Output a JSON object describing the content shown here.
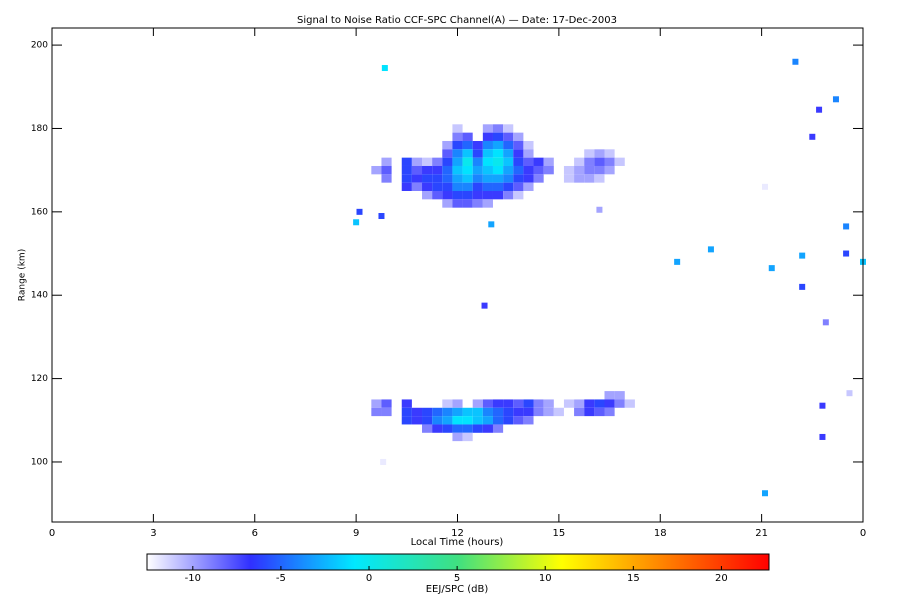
{
  "chart_data": {
    "type": "heatmap",
    "title": "Signal to Noise Ratio CCF-SPC Channel(A) — Date: 17-Dec-2003",
    "x_label": "Local Time (hours)",
    "y_label": "Range (km)",
    "xlim": [
      0,
      24
    ],
    "xticks": [
      0,
      3,
      6,
      9,
      12,
      15,
      18,
      21,
      {
        "value": 24,
        "label": "0"
      }
    ],
    "ylim": [
      85.6,
      204.1
    ],
    "yticks": [
      100,
      120,
      140,
      160,
      180,
      200
    ],
    "x": [
      9.6,
      9.9,
      10.2,
      10.5,
      10.8,
      11.1,
      11.4,
      11.7,
      12.0,
      12.3,
      12.6,
      12.9,
      13.2,
      13.5,
      13.8,
      14.1,
      14.4,
      14.7,
      15.0,
      15.3,
      15.6,
      15.9,
      16.2,
      16.5,
      16.8,
      17.1
    ],
    "y": [
      180,
      178,
      176,
      174,
      172,
      170,
      168,
      166,
      164,
      162,
      116,
      114,
      112,
      110,
      108,
      106
    ],
    "z": [
      [
        null,
        null,
        null,
        null,
        null,
        null,
        null,
        null,
        -11,
        null,
        null,
        -10,
        -9,
        -11,
        null,
        null,
        null,
        null,
        null,
        null,
        null,
        null,
        null,
        null,
        null,
        null
      ],
      [
        null,
        null,
        null,
        null,
        null,
        null,
        null,
        null,
        -9,
        -8,
        null,
        -7,
        -6,
        -8,
        -10,
        null,
        null,
        null,
        null,
        null,
        null,
        null,
        null,
        null,
        null,
        null
      ],
      [
        null,
        null,
        null,
        null,
        null,
        null,
        null,
        -10,
        -6,
        -5,
        -7,
        -4,
        -3,
        -5,
        -8,
        -11,
        null,
        null,
        null,
        null,
        null,
        null,
        null,
        null,
        null,
        null
      ],
      [
        null,
        null,
        null,
        null,
        null,
        null,
        null,
        -8,
        -4,
        -2,
        -6,
        -2,
        -1,
        -3,
        -7,
        -10,
        null,
        null,
        null,
        null,
        null,
        -11,
        -10,
        -11,
        null,
        null
      ],
      [
        null,
        -10,
        null,
        -6,
        -10,
        -11,
        -9,
        -6,
        -3,
        0,
        -4,
        -1,
        0,
        -2,
        -6,
        -8,
        -7,
        -10,
        null,
        null,
        -11,
        -9,
        -8,
        -9,
        -11,
        null
      ],
      [
        -10,
        -8,
        null,
        -6,
        -8,
        -7,
        -7,
        -5,
        -2,
        -1,
        -3,
        -2,
        -1,
        -3,
        -5,
        -7,
        -8,
        -9,
        null,
        -11,
        -10,
        -9,
        -9,
        -10,
        null,
        null
      ],
      [
        null,
        -9,
        null,
        -6,
        -7,
        -6,
        -6,
        -5,
        -3,
        -2,
        -4,
        -3,
        -3,
        -4,
        -6,
        -7,
        -9,
        null,
        null,
        -11,
        -10,
        -10,
        -11,
        null,
        null,
        null
      ],
      [
        null,
        null,
        null,
        -7,
        -9,
        -7,
        -6,
        -6,
        -4,
        -4,
        -6,
        -5,
        -5,
        -6,
        -8,
        -10,
        null,
        null,
        null,
        null,
        null,
        null,
        null,
        null,
        null,
        null
      ],
      [
        null,
        null,
        null,
        null,
        null,
        -10,
        -8,
        -7,
        -6,
        -6,
        -7,
        -7,
        -7,
        -9,
        -11,
        null,
        null,
        null,
        null,
        null,
        null,
        null,
        null,
        null,
        null,
        null
      ],
      [
        null,
        null,
        null,
        null,
        null,
        null,
        null,
        -10,
        -8,
        -8,
        -9,
        -10,
        null,
        null,
        null,
        null,
        null,
        null,
        null,
        null,
        null,
        null,
        null,
        null,
        null,
        null
      ],
      [
        null,
        null,
        null,
        null,
        null,
        null,
        null,
        null,
        null,
        null,
        null,
        null,
        null,
        null,
        null,
        null,
        null,
        null,
        null,
        null,
        null,
        null,
        null,
        -10,
        -10,
        null
      ],
      [
        -10,
        -8,
        null,
        -7,
        null,
        null,
        null,
        -11,
        -10,
        null,
        -10,
        -8,
        -7,
        -7,
        -8,
        -6,
        -9,
        -10,
        null,
        -11,
        -10,
        -7,
        -6,
        -7,
        -9,
        -11
      ],
      [
        -9,
        -9,
        null,
        -6,
        -7,
        -6,
        -5,
        -4,
        -3,
        -2,
        -2,
        -4,
        -5,
        -6,
        -7,
        -7,
        -9,
        -10,
        -11,
        null,
        -9,
        -7,
        -8,
        -9,
        null,
        null
      ],
      [
        null,
        null,
        null,
        -6,
        -7,
        -6,
        -4,
        -3,
        -1,
        -1,
        -2,
        -3,
        -5,
        -6,
        -8,
        -9,
        null,
        null,
        null,
        null,
        null,
        null,
        null,
        null,
        null,
        null
      ],
      [
        null,
        null,
        null,
        null,
        null,
        -9,
        -7,
        -6,
        -5,
        -5,
        -6,
        -7,
        -9,
        null,
        null,
        null,
        null,
        null,
        null,
        null,
        null,
        null,
        null,
        null,
        null,
        null
      ],
      [
        null,
        null,
        null,
        null,
        null,
        null,
        null,
        null,
        -10,
        -11,
        null,
        null,
        null,
        null,
        null,
        null,
        null,
        null,
        null,
        null,
        null,
        null,
        null,
        null,
        null,
        null
      ]
    ],
    "points": {
      "x": [
        9.85,
        9.0,
        9.1,
        9.75,
        13.0,
        12.8,
        9.8,
        18.5,
        19.5,
        21.1,
        21.3,
        22.0,
        22.2,
        22.2,
        22.5,
        22.7,
        22.8,
        22.9,
        22.8,
        23.2,
        23.5,
        23.5,
        24.0,
        23.6,
        21.1,
        16.2
      ],
      "y": [
        194.5,
        157.5,
        160,
        159,
        157,
        137.5,
        100,
        148,
        151,
        92.5,
        146.5,
        196,
        149.5,
        142,
        178,
        184.5,
        106,
        133.5,
        113.5,
        187,
        156.5,
        150,
        148,
        116.5,
        166,
        160.5
      ],
      "values": [
        -1,
        -2,
        -6,
        -6,
        -3,
        -7,
        -12,
        -3,
        -3,
        -3,
        -3,
        -4,
        -3,
        -6,
        -7,
        -7,
        -7,
        -9,
        -7,
        -4,
        -4,
        -6,
        -2,
        -11,
        -12,
        -10
      ]
    },
    "colorbar_label": "EEJ/SPC (dB)",
    "clim": [
      -12.6,
      22.7
    ],
    "cticks": [
      -10,
      -5,
      0,
      5,
      10,
      15,
      20
    ],
    "colorscale": [
      "#ffffff",
      "#3030ff",
      "#00e8ff",
      "#40e080",
      "#ffff00",
      "#ff8000",
      "#ff0000"
    ]
  }
}
